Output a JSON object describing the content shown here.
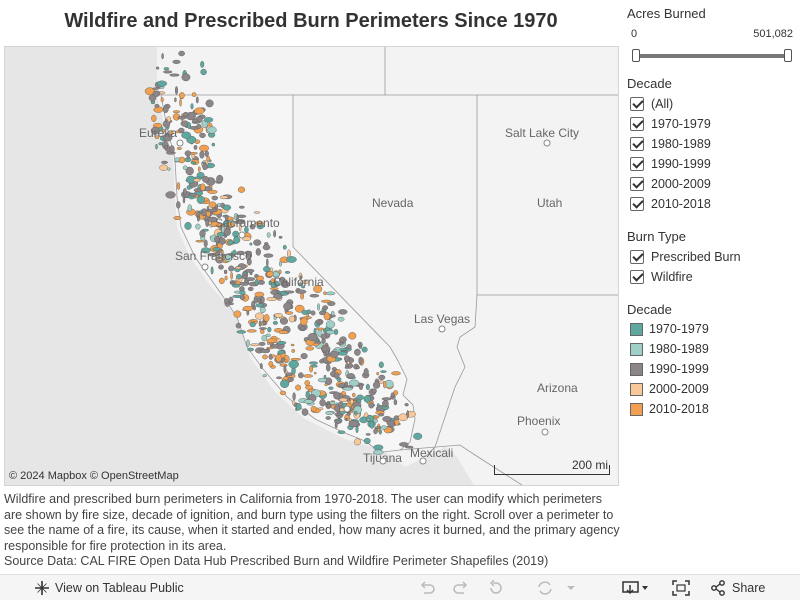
{
  "title": "Wildfire and Prescribed Burn Perimeters Since 1970",
  "map": {
    "attribution": "© 2024 Mapbox  © OpenStreetMap",
    "scale_label": "200 mi",
    "labels": [
      {
        "key": "eureka",
        "text": "Eureka"
      },
      {
        "key": "slc",
        "text": "Salt Lake City"
      },
      {
        "key": "nevada",
        "text": "Nevada"
      },
      {
        "key": "utah",
        "text": "Utah"
      },
      {
        "key": "sacramento",
        "text": "Sacramento"
      },
      {
        "key": "sf",
        "text": "San Francisco"
      },
      {
        "key": "california",
        "text": "California"
      },
      {
        "key": "lasvegas",
        "text": "Las Vegas"
      },
      {
        "key": "arizona",
        "text": "Arizona"
      },
      {
        "key": "phoenix",
        "text": "Phoenix"
      },
      {
        "key": "tijuana",
        "text": "Tijuana"
      },
      {
        "key": "mexicali",
        "text": "Mexicali"
      }
    ],
    "decade_colors": [
      "#5fa8a0",
      "#9fd0c8",
      "#8c8688",
      "#f9c898",
      "#f0a050"
    ]
  },
  "filters": {
    "acres": {
      "label": "Acres Burned",
      "min": "0",
      "max": "501,082"
    },
    "decade": {
      "label": "Decade",
      "items": [
        "(All)",
        "1970-1979",
        "1980-1989",
        "1990-1999",
        "2000-2009",
        "2010-2018"
      ]
    },
    "burn_type": {
      "label": "Burn Type",
      "items": [
        "Prescribed Burn",
        "Wildfire"
      ]
    }
  },
  "legend": {
    "label": "Decade",
    "items": [
      {
        "label": "1970-1979",
        "color": "#5fa8a0"
      },
      {
        "label": "1980-1989",
        "color": "#9fd0c8"
      },
      {
        "label": "1990-1999",
        "color": "#8c8688"
      },
      {
        "label": "2000-2009",
        "color": "#f9c898"
      },
      {
        "label": "2010-2018",
        "color": "#f0a050"
      }
    ]
  },
  "description": {
    "text": "Wildfire and prescribed burn perimeters in California from 1970-2018. The user can modify which perimeters are shown by fire size, decade of ignition, and burn type using the filters on the right. Scroll over a perimeter to see the name of a fire, its cause, when it started and ended, how many acres it burned, and the primary agency responsible for fire protection in its area.",
    "source": "Source Data: CAL FIRE Open Data Hub Prescribed Burn and Wildfire Perimeter Shapefiles (2019)"
  },
  "toolbar": {
    "view_label": "View on Tableau Public",
    "share_label": "Share"
  }
}
